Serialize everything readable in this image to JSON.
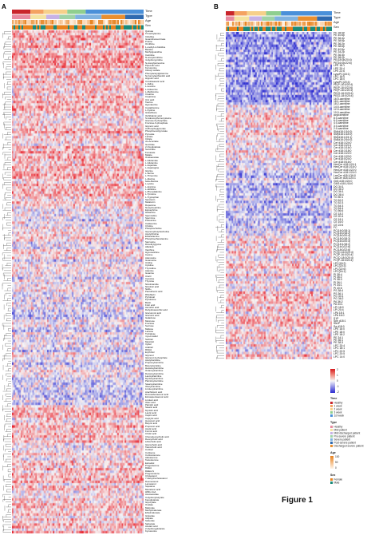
{
  "panels": {
    "a": "A",
    "b": "B"
  },
  "annotation_tracks": [
    "Time",
    "Type",
    "Age",
    "Sex"
  ],
  "colors": {
    "heat_high": "#e8202a",
    "heat_mid": "#f7f7f7",
    "heat_low": "#2b2bd0",
    "time_healthy": "#c9242b",
    "time_1week": "#f4a261",
    "time_2week": "#f6d08a",
    "time_3week": "#8fcf8f",
    "time_1st": "#4a90d9",
    "type_healthy": "#e88aa0",
    "type_mild": "#f4e3a0",
    "type_mild_discharged": "#c7b2e6",
    "type_pre_severe": "#9fd3a7",
    "type_severe": "#7fb2e0",
    "type_post_severe": "#2f6ab0",
    "type_discharged_severe": "#e98f30",
    "sex_female": "#e8821e",
    "sex_male": "#1b8a7a"
  },
  "panel_a_labels": [
    "Quinate",
    "Trimethylamine",
    "Citrulline",
    "Guanidinosuccinate",
    "Proline",
    "Ornithine",
    "1-methyl-L-histidine",
    "Betaine",
    "Methylguanidine",
    "Carnitine",
    "N-acetylornithine",
    "4-Hydroxyproline",
    "N-Acetylputrescine",
    "Pipecolic acid",
    "Kynurenine",
    "Indoxyl sulfate",
    "Phenylacetylglutamine",
    "N-Formylanthranilic acid",
    "Hippuric acid",
    "3-Indoleacetic acid",
    "L-Valine",
    "L-Leucine",
    "L-Isoleucine",
    "L-Methionine",
    "Creatine",
    "Creatinine",
    "Uric acid",
    "Taurine",
    "Hypotaurine",
    "Cystathionine",
    "L-Cystine",
    "Glutathione",
    "Ophthalmic acid",
    "S-Adenosylhomocysteine",
    "Glucose-6-phosphate",
    "Fructose-6-phosphate",
    "Glyceric acid",
    "3-Phosphoglycerate",
    "Phosphoenolpyruvate",
    "Pyruvate",
    "Lactate",
    "Citrate",
    "cis-Aconitate",
    "Isocitrate",
    "2-Oxoglutarate",
    "Succinate",
    "Fumarate",
    "Malate",
    "Oxaloacetate",
    "L-Glutamate",
    "L-Glutamine",
    "L-Aspartate",
    "L-Asparagine",
    "Glycine",
    "L-Serine",
    "L-Threonine",
    "L-Alanine",
    "beta-Alanine",
    "L-Lysine",
    "L-Arginine",
    "L-Histidine",
    "L-Phenylalanine",
    "L-Tyrosine",
    "L-Tryptophan",
    "Serotonin",
    "Melatonin",
    "Dopamine",
    "Norepinephrine",
    "Epinephrine",
    "Histamine",
    "Spermidine",
    "Spermine",
    "Putrescine",
    "Cadaverine",
    "Choline",
    "Phosphocholine",
    "Glycerophosphocholine",
    "Acetylcholine",
    "Ethanolamine",
    "Phosphoethanolamine",
    "Sarcosine",
    "Dimethylglycine",
    "Allantoin",
    "Xanthine",
    "Hypoxanthine",
    "Inosine",
    "Adenosine",
    "Guanosine",
    "Uridine",
    "Cytidine",
    "Thymidine",
    "Adenine",
    "Guanine",
    "Uracil",
    "Cytosine",
    "Thymine",
    "Nicotinamide",
    "Nicotinic acid",
    "NAD+",
    "Pantothenic acid",
    "Riboflavin",
    "Pyridoxal",
    "Pyridoxine",
    "Biotin",
    "Folic acid",
    "Ascorbic acid",
    "Dehydroascorbic acid",
    "Glucuronic acid",
    "Gluconic acid",
    "Galactose",
    "Mannose",
    "Fructose",
    "Sucrose",
    "Maltose",
    "Lactose",
    "Trehalose",
    "myo-Inositol",
    "Sorbitol",
    "Mannitol",
    "Xylitol",
    "Arabitol",
    "Ribitol",
    "Erythritol",
    "Glycerol",
    "Glycerol-3-phosphate",
    "Acetylcarnitine",
    "Propionylcarnitine",
    "Butyrylcarnitine",
    "Hexanoylcarnitine",
    "Octanoylcarnitine",
    "Decanoylcarnitine",
    "Lauroylcarnitine",
    "Myristoylcarnitine",
    "Palmitoylcarnitine",
    "Stearoylcarnitine",
    "Oleoylcarnitine",
    "Linoleoylcarnitine",
    "Arachidonic acid",
    "Docosahexaenoic acid",
    "Eicosapentaenoic acid",
    "Linoleic acid",
    "Oleic acid",
    "Palmitic acid",
    "Stearic acid",
    "Myristic acid",
    "Lauric acid",
    "Capric acid",
    "Caprylic acid",
    "Hexanoic acid",
    "Butyric acid",
    "Propionic acid",
    "Acetic acid",
    "Formic acid",
    "Cholic acid",
    "Chenodeoxycholic acid",
    "Deoxycholic acid",
    "Lithocholic acid",
    "Glycocholic acid",
    "Taurocholic acid",
    "Cortisol",
    "Cortisone",
    "Corticosterone",
    "Aldosterone",
    "Testosterone",
    "Estradiol",
    "Progesterone",
    "DHEA",
    "DHEA-S",
    "Pregnenolone",
    "Cholesterol",
    "7-Dehydrocholesterol",
    "Desmosterol",
    "Lanosterol",
    "Squalene",
    "Mevalonic acid",
    "HMG-CoA",
    "Acetoacetate",
    "3-Hydroxybutyrate",
    "Ketoglutarate",
    "Glyoxylate",
    "Oxalate",
    "Malonate",
    "Methylmalonate",
    "Ethylmalonate",
    "Glutarate",
    "Adipate",
    "Suberate",
    "Sebacate",
    "Azelaic acid",
    "2-Hydroxyglutarate",
    "Kynurenine"
  ],
  "panel_b_labels": [
    "PE 38:4p",
    "PE 40:6p",
    "PE 36:4p",
    "PE 38:5p",
    "PE 36:2p",
    "PE 38:6p",
    "PE 40:5p",
    "PE 34:2p",
    "PE 36:3p",
    "PE 38:2p",
    "PE(18:0p/20:4)",
    "PE(16:0p/22:6)",
    "LPE 18:1",
    "LPE 20:4",
    "LPE 22:6",
    "LysoPC(18:1)",
    "LPC 16:0",
    "LPC 18:0",
    "LysoPC(20:4)",
    "PE(P-16:0/20:4)",
    "PE(P-18:0/22:6)",
    "PE(P-18:1/20:4)",
    "PE(O-16:0/20:4)",
    "PE(O-18:0/20:4)",
    "16:0-carnitine",
    "18:1-carnitine",
    "18:2-carnitine",
    "14:0-carnitine",
    "12:0-carnitine",
    "10:0-carnitine",
    "acylcarnitine",
    "8:0-carnitine",
    "6:0-carnitine",
    "4:0-carnitine",
    "3:0-carnitine",
    "2:0-carnitine",
    "SM(d18:1/16:0)",
    "SM(d18:1/18:0)",
    "SM(d18:1/24:1)",
    "SM(d18:2/16:0)",
    "Cer d18:1/24:0",
    "Cer d18:1/24:1",
    "Cer d18:1/16:0",
    "Cer d18:1/18:0",
    "Cer d18:1/22:0",
    "Cer d18:1/20:0",
    "Cer d18:0/24:0",
    "Cer d18:0/16:0",
    "HexCer d18:1/24:1",
    "HexCer d18:1/16:0",
    "HexCer d18:1/22:0",
    "HexCer d18:1/24:0",
    "LacCer d18:1/16:0",
    "LacCer d18:1/24:1",
    "Gb3 d18:1/24:0",
    "GM3 d18:1/16:0",
    "DG 34:1",
    "DG 36:2",
    "DG 36:1",
    "DG 38:4",
    "TG 50:1",
    "TG 52:2",
    "TG 52:3",
    "TG 54:3",
    "TG 54:4",
    "TG 56:6",
    "CE 18:2",
    "CE 20:4",
    "CE 18:1",
    "CE 16:0",
    "CE 22:6",
    "FC",
    "PC(16:0/18:1)",
    "PC(16:0/18:2)",
    "PC(18:0/20:4)",
    "PC(18:0/18:2)",
    "PC(16:0/20:4)",
    "PC(18:1/18:2)",
    "PC(16:0/22:6)",
    "PC(18:0/22:6)",
    "PC(O-16:0/20:4)",
    "PC(P-16:0/20:4)",
    "PC(O-18:0/20:4)",
    "PC(P-18:0/20:4)",
    "LPC(18:2)",
    "LPC(20:3)",
    "LPC(22:6)",
    "LPC(16:1)",
    "PI 38:4",
    "PI 36:2",
    "PI 38:3",
    "PI 36:1",
    "PI 34:1",
    "PI 40:6",
    "PS 38:4",
    "PS 36:1",
    "PG 34:1",
    "PG 36:2",
    "PA 36:2",
    "PA 34:1",
    "LPI 18:0",
    "LPI 20:4",
    "LPA 18:1",
    "LPA 16:0",
    "S1P",
    "Sph d18:1",
    "Sa1P",
    "Sa d18:0",
    "LPE 16:0",
    "LPE 18:0",
    "LPE 18:2",
    "PE 34:1",
    "PE 36:1",
    "PE 38:3",
    "LPC 20:4",
    "LPC 18:1",
    "LPC 22:5",
    "LPC 20:5",
    "LPC 14:0"
  ],
  "legend": {
    "scale": {
      "ticks": [
        "2",
        "1",
        "0",
        "-1",
        "-2"
      ]
    },
    "time": {
      "title": "Time",
      "items": [
        "Healthy",
        "1 week",
        "2 week",
        "3 week",
        "1st week"
      ]
    },
    "type": {
      "title": "Type",
      "items": [
        "Healthy",
        "Mild patient",
        "Mild discharged patient",
        "Pre-severe patient",
        "Severe patient",
        "Post-severe patient",
        "Discharged severe patient"
      ]
    },
    "age": {
      "title": "Age",
      "items": [
        "100",
        "50",
        "0"
      ]
    },
    "sex": {
      "title": "Sex",
      "items": [
        "Female",
        "Male"
      ]
    }
  },
  "caption": "Figure 1"
}
